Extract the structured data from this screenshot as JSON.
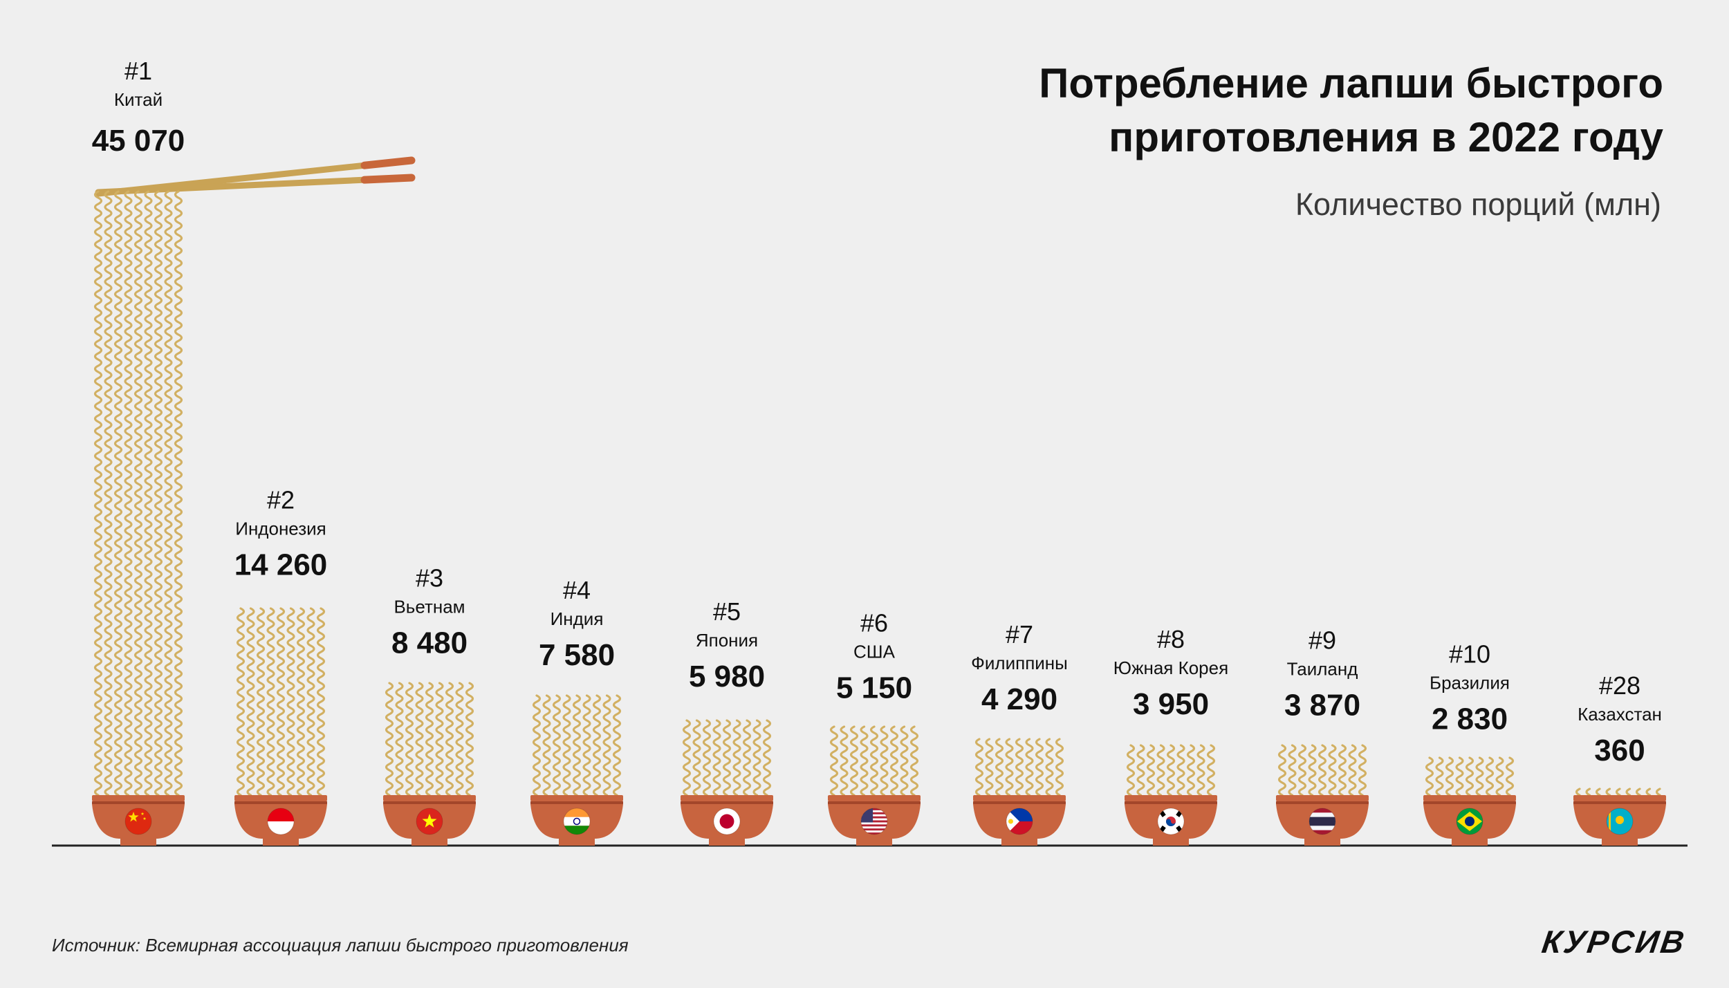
{
  "title_line1": "Потребление лапши быстрого",
  "title_line2": "приготовления в 2022 году",
  "subtitle": "Количество порций (млн)",
  "source": "Источник: Всемирная ассоциация лапши быстрого приготовления",
  "logo": "КУРСИВ",
  "colors": {
    "background": "#efefef",
    "noodle": "#d2b062",
    "bowl": "#c8643f",
    "bowl_rim": "#a3462a",
    "chopstick": "#c9a355",
    "chopstick_tip": "#c8673a",
    "baseline": "#222222"
  },
  "chart_data": {
    "type": "bar",
    "title": "Потребление лапши быстрого приготовления в 2022 году",
    "subtitle": "Количество порций (млн)",
    "categories": [
      "Китай",
      "Индонезия",
      "Вьетнам",
      "Индия",
      "Япония",
      "США",
      "Филиппины",
      "Южная Корея",
      "Таиланд",
      "Бразилия",
      "Казахстан"
    ],
    "values": [
      45070,
      14260,
      8480,
      7580,
      5980,
      5150,
      4290,
      3950,
      3870,
      2830,
      360
    ],
    "items": [
      {
        "rank": "#1",
        "country": "Китай",
        "value": 45070,
        "value_label": "45 070",
        "flag": "cn"
      },
      {
        "rank": "#2",
        "country": "Индонезия",
        "value": 14260,
        "value_label": "14 260",
        "flag": "id"
      },
      {
        "rank": "#3",
        "country": "Вьетнам",
        "value": 8480,
        "value_label": "8 480",
        "flag": "vn"
      },
      {
        "rank": "#4",
        "country": "Индия",
        "value": 7580,
        "value_label": "7 580",
        "flag": "in"
      },
      {
        "rank": "#5",
        "country": "Япония",
        "value": 5980,
        "value_label": "5 980",
        "flag": "jp"
      },
      {
        "rank": "#6",
        "country": "США",
        "value": 5150,
        "value_label": "5 150",
        "flag": "us"
      },
      {
        "rank": "#7",
        "country": "Филиппины",
        "value": 4290,
        "value_label": "4 290",
        "flag": "ph"
      },
      {
        "rank": "#8",
        "country": "Южная Корея",
        "value": 3950,
        "value_label": "3 950",
        "flag": "kr"
      },
      {
        "rank": "#9",
        "country": "Таиланд",
        "value": 3870,
        "value_label": "3 870",
        "flag": "th"
      },
      {
        "rank": "#10",
        "country": "Бразилия",
        "value": 2830,
        "value_label": "2 830",
        "flag": "br"
      },
      {
        "rank": "#28",
        "country": "Казахстан",
        "value": 360,
        "value_label": "360",
        "flag": "kz"
      }
    ],
    "ylim": [
      0,
      45070
    ],
    "grid": false,
    "legend": "none"
  }
}
